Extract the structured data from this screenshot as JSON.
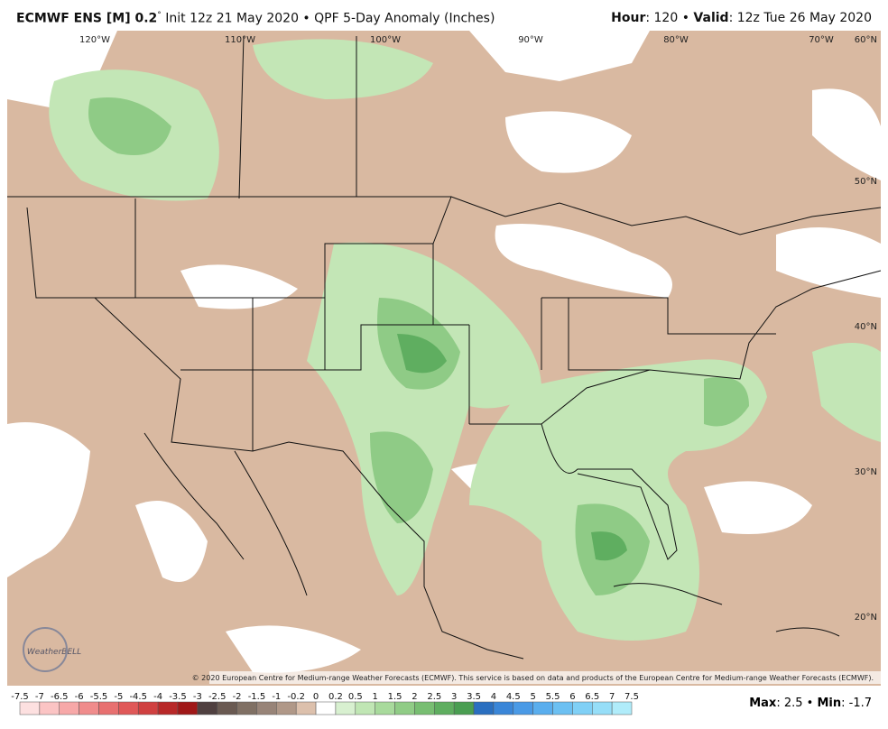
{
  "header": {
    "model": "ECMWF ENS [M] 0.2",
    "degree": "°",
    "info": "Init 12z 21 May 2020 • QPF 5-Day Anomaly (Inches)",
    "hour_label": "Hour",
    "hour_value": ": 120 •",
    "valid_label": "Valid",
    "valid_value": ": 12z Tue 26 May 2020"
  },
  "map": {
    "longitude_labels": [
      "120°W",
      "110°W",
      "100°W",
      "90°W",
      "80°W",
      "70°W"
    ],
    "latitude_labels": [
      "60°N",
      "50°N",
      "40°N",
      "30°N",
      "20°N"
    ],
    "logo": "WeatherBELL",
    "copyright": "© 2020 European Centre for Medium-range Weather Forecasts (ECMWF). This service is based on data and products of the European Centre for Medium-range Weather Forecasts (ECMWF)."
  },
  "colorbar": {
    "labels": [
      -7.5,
      -7,
      -6.5,
      -6,
      -5.5,
      -5,
      -4.5,
      -4,
      -3.5,
      -3,
      -2.5,
      -2,
      -1.5,
      -1,
      -0.2,
      0,
      0.2,
      0.5,
      1,
      1.5,
      2,
      2.5,
      3,
      3.5,
      4,
      4.5,
      5,
      5.5,
      6,
      6.5,
      7,
      7.5
    ],
    "colors": [
      "#fde0e0",
      "#fbc4c4",
      "#f7a8a8",
      "#f08c8c",
      "#e87070",
      "#e05858",
      "#d04040",
      "#b82828",
      "#a01818",
      "#504040",
      "#6a5a52",
      "#807064",
      "#988478",
      "#b09888",
      "#dcc0ac",
      "#ffffff",
      "#d8f0d0",
      "#c0e6b4",
      "#a8da9c",
      "#90cc86",
      "#78be72",
      "#5fae60",
      "#4a9e52",
      "#2a6fc0",
      "#3a86d8",
      "#4a9ae6",
      "#5aaeee",
      "#6cc0f2",
      "#80d0f6",
      "#96def8",
      "#b0ecfa"
    ]
  },
  "footer": {
    "max_label": "Max",
    "max_value": ": 2.5 •",
    "min_label": "Min",
    "min_value": ": -1.7"
  }
}
